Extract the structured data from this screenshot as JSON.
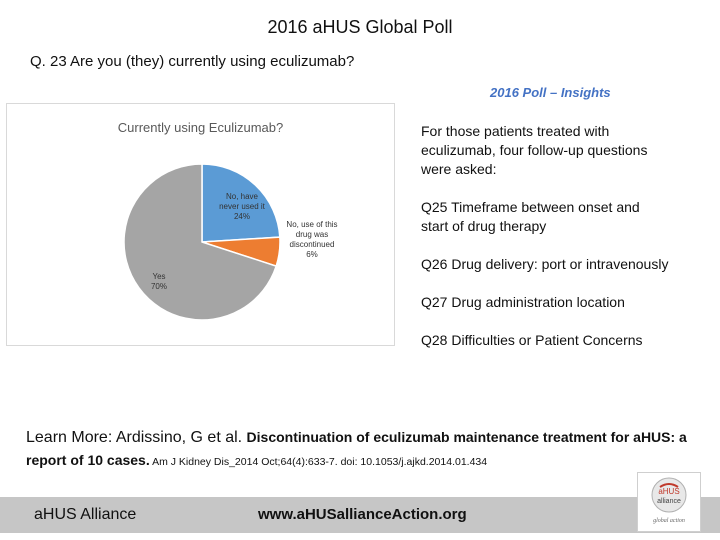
{
  "title": "2016 aHUS Global Poll",
  "question": "Q. 23  Are you (they) currently using eculizumab?",
  "chart_data": {
    "type": "pie",
    "title": "Currently using Eculizumab?",
    "slices": [
      {
        "label_lines": [
          "No, have",
          "never used it",
          "24%"
        ],
        "value": 24,
        "color": "#5b9bd5"
      },
      {
        "label_lines": [
          "No, use of this",
          "drug was",
          "discontinued",
          "6%"
        ],
        "value": 6,
        "color": "#ed7d31"
      },
      {
        "label_lines": [
          "Yes",
          "70%"
        ],
        "value": 70,
        "color": "#a5a5a5"
      }
    ]
  },
  "insights": {
    "heading": "2016 Poll – Insights",
    "intro_lines": [
      "For those patients treated with",
      "eculizumab, four follow-up questions",
      "were asked:"
    ],
    "questions": [
      [
        "Q25  Timeframe between onset and",
        "start of drug therapy"
      ],
      [
        "Q26  Drug delivery: port or intravenously"
      ],
      [
        "Q27  Drug administration location"
      ],
      [
        "Q28  Difficulties or Patient Concerns"
      ]
    ]
  },
  "learn_more": {
    "label": "Learn More:  Ardissino, G et al. ",
    "title": "Discontinuation of eculizumab maintenance treatment for aHUS: a report of 10 cases.",
    "citation": "  Am J Kidney Dis ̲ 2014 Oct;64(4):633-7. doi: 10.1053/j.ajkd.2014.01.434"
  },
  "footer": {
    "org": "aHUS Alliance",
    "url": "www.aHUSallianceAction.org",
    "logo_text": [
      "aHUS",
      "alliance",
      "global action"
    ]
  }
}
